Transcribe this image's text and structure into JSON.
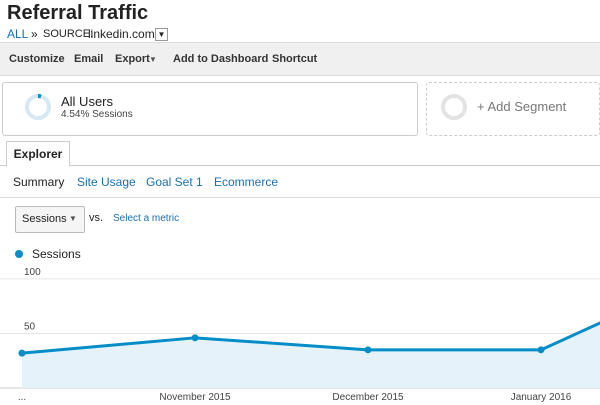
{
  "header": {
    "title": "Referral Traffic",
    "breadcrumb": [
      "ALL",
      "»",
      "SOURCE:",
      "linkedin.com"
    ]
  },
  "toolbar": [
    "Customize",
    "Email",
    "Export",
    "Add to Dashboard",
    "Shortcut"
  ],
  "segments": [
    {
      "name": "All Users",
      "detail": "4.54% Sessions"
    },
    {
      "name": "+ Add Segment"
    }
  ],
  "tabs": [
    "Explorer"
  ],
  "subtabs": [
    "Summary",
    "Site Usage",
    "Goal Set 1",
    "Ecommerce"
  ],
  "metric_selector": {
    "metric": "Sessions",
    "vs": "vs.",
    "link": "Select a metric"
  },
  "chart_data": {
    "type": "line",
    "categories": [
      "...",
      "November 2015",
      "December 2015",
      "January 2016",
      null
    ],
    "series": [
      {
        "name": "Sessions",
        "color": "#058dc7",
        "values": [
          32,
          46,
          35,
          35,
          107
        ]
      }
    ],
    "ylim": [
      0,
      110
    ],
    "yticks": [
      50,
      100
    ],
    "grid": true
  }
}
